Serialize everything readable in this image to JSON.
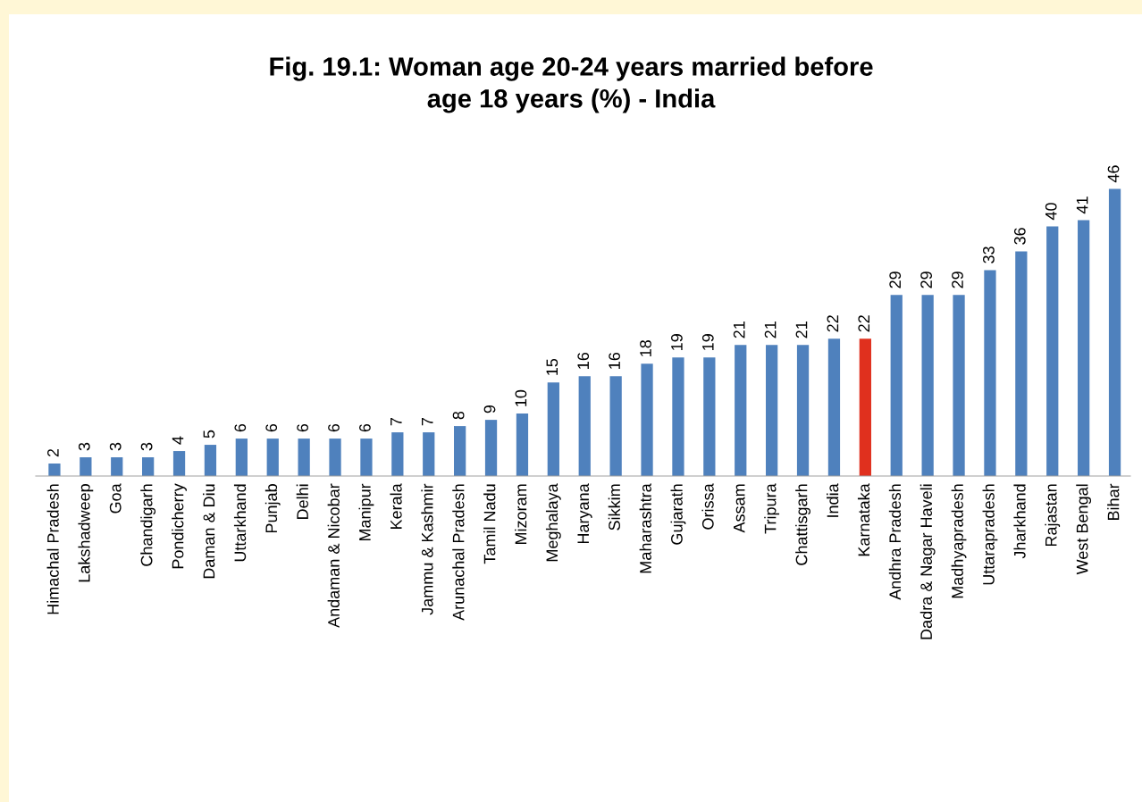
{
  "chart_data": {
    "type": "bar",
    "title": "Fig. 19.1: Woman age 20-24 years married before\nage 18 years (%) - India",
    "categories": [
      "Himachal Pradesh",
      "Lakshadweep",
      "Goa",
      "Chandigarh",
      "Pondicherry",
      "Daman & Diu",
      "Uttarkhand",
      "Punjab",
      "Delhi",
      "Andaman & Nicobar",
      "Manipur",
      "Kerala",
      "Jammu & Kashmir",
      "Arunachal Pradesh",
      "Tamil Nadu",
      "Mizoram",
      "Meghalaya",
      "Haryana",
      "Sikkim",
      "Maharashtra",
      "Gujarath",
      "Orissa",
      "Assam",
      "Tripura",
      "Chattisgarh",
      "India",
      "Karnataka",
      "Andhra Pradesh",
      "Dadra & Nagar Haveli",
      "Madhyapradesh",
      "Uttarapradesh",
      "Jharkhand",
      "Rajastan",
      "West Bengal",
      "Bihar"
    ],
    "values": [
      2,
      3,
      3,
      3,
      4,
      5,
      6,
      6,
      6,
      6,
      6,
      7,
      7,
      8,
      9,
      10,
      15,
      16,
      16,
      18,
      19,
      19,
      21,
      21,
      21,
      22,
      22,
      29,
      29,
      29,
      33,
      36,
      40,
      41,
      46
    ],
    "colors": [
      "#4f81bd",
      "#4f81bd",
      "#4f81bd",
      "#4f81bd",
      "#4f81bd",
      "#4f81bd",
      "#4f81bd",
      "#4f81bd",
      "#4f81bd",
      "#4f81bd",
      "#4f81bd",
      "#4f81bd",
      "#4f81bd",
      "#4f81bd",
      "#4f81bd",
      "#4f81bd",
      "#4f81bd",
      "#4f81bd",
      "#4f81bd",
      "#4f81bd",
      "#4f81bd",
      "#4f81bd",
      "#4f81bd",
      "#4f81bd",
      "#4f81bd",
      "#4f81bd",
      "#e0301e",
      "#4f81bd",
      "#4f81bd",
      "#4f81bd",
      "#4f81bd",
      "#4f81bd",
      "#4f81bd",
      "#4f81bd",
      "#4f81bd"
    ],
    "data_labels": true,
    "grid": false,
    "legend": false
  }
}
